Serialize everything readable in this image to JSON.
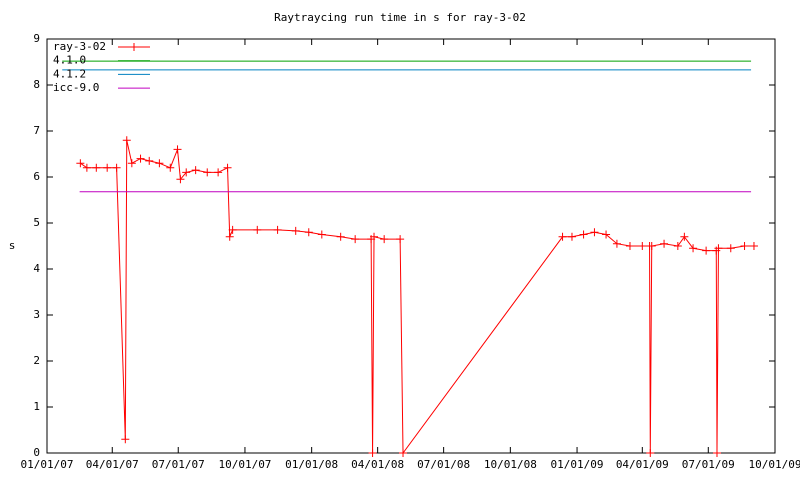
{
  "chart_data": {
    "type": "line",
    "title": "Raytraycing run time in s for ray-3-02",
    "y_label": "s",
    "xlim": [
      "2007-01-01",
      "2009-10-01"
    ],
    "xticks": [
      {
        "value": "2007-01-01",
        "label": "01/01/07"
      },
      {
        "value": "2007-04-01",
        "label": "04/01/07"
      },
      {
        "value": "2007-07-01",
        "label": "07/01/07"
      },
      {
        "value": "2007-10-01",
        "label": "10/01/07"
      },
      {
        "value": "2008-01-01",
        "label": "01/01/08"
      },
      {
        "value": "2008-04-01",
        "label": "04/01/08"
      },
      {
        "value": "2008-07-01",
        "label": "07/01/08"
      },
      {
        "value": "2008-10-01",
        "label": "10/01/08"
      },
      {
        "value": "2009-01-01",
        "label": "01/01/09"
      },
      {
        "value": "2009-04-01",
        "label": "04/01/09"
      },
      {
        "value": "2009-07-01",
        "label": "07/01/09"
      },
      {
        "value": "2009-10-01",
        "label": "10/01/09"
      }
    ],
    "ylim": [
      0,
      9
    ],
    "yticks": [
      0,
      1,
      2,
      3,
      4,
      5,
      6,
      7,
      8,
      9
    ],
    "legend": "top-left",
    "series": [
      {
        "name": "ray-3-02",
        "color": "#ff0000",
        "markers": true,
        "x": [
          "2007-02-16",
          "2007-02-25",
          "2007-03-10",
          "2007-03-25",
          "2007-04-07",
          "2007-04-19",
          "2007-04-21",
          "2007-04-28",
          "2007-05-10",
          "2007-05-22",
          "2007-06-05",
          "2007-06-20",
          "2007-06-30",
          "2007-07-04",
          "2007-07-12",
          "2007-07-25",
          "2007-08-10",
          "2007-08-25",
          "2007-09-07",
          "2007-09-10",
          "2007-09-14",
          "2007-10-18",
          "2007-11-15",
          "2007-12-10",
          "2007-12-28",
          "2008-01-15",
          "2008-02-10",
          "2008-03-01",
          "2008-03-23",
          "2008-03-25",
          "2008-03-27",
          "2008-04-10",
          "2008-05-02",
          "2008-05-06",
          "2008-12-12",
          "2008-12-25",
          "2009-01-10",
          "2009-01-25",
          "2009-02-10",
          "2009-02-25",
          "2009-03-15",
          "2009-04-01",
          "2009-04-11",
          "2009-04-12",
          "2009-04-14",
          "2009-05-01",
          "2009-05-20",
          "2009-05-29",
          "2009-06-10",
          "2009-06-28",
          "2009-07-12",
          "2009-07-13",
          "2009-07-15",
          "2009-08-01",
          "2009-08-20",
          "2009-09-02"
        ],
        "values": [
          6.3,
          6.2,
          6.2,
          6.2,
          6.2,
          0.3,
          6.8,
          6.3,
          6.4,
          6.35,
          6.3,
          6.2,
          6.6,
          5.95,
          6.1,
          6.15,
          6.1,
          6.1,
          6.2,
          4.7,
          4.85,
          4.85,
          4.85,
          4.83,
          4.8,
          4.75,
          4.7,
          4.65,
          4.65,
          0,
          4.7,
          4.65,
          4.65,
          0,
          4.7,
          4.7,
          4.75,
          4.8,
          4.75,
          4.55,
          4.5,
          4.5,
          4.5,
          0,
          4.5,
          4.55,
          4.5,
          4.7,
          4.45,
          4.4,
          4.4,
          0,
          4.45,
          4.45,
          4.5,
          4.5
        ]
      },
      {
        "name": "4.1.0",
        "color": "#00a000",
        "x": [
          "2007-01-22",
          "2009-08-29"
        ],
        "values": [
          8.52,
          8.52
        ]
      },
      {
        "name": "4.1.2",
        "color": "#0080c0",
        "x": [
          "2007-01-22",
          "2009-08-29"
        ],
        "values": [
          8.33,
          8.33
        ]
      },
      {
        "name": "icc-9.0",
        "color": "#c000c0",
        "x": [
          "2007-02-15",
          "2009-08-29"
        ],
        "values": [
          5.68,
          5.68
        ]
      }
    ]
  }
}
